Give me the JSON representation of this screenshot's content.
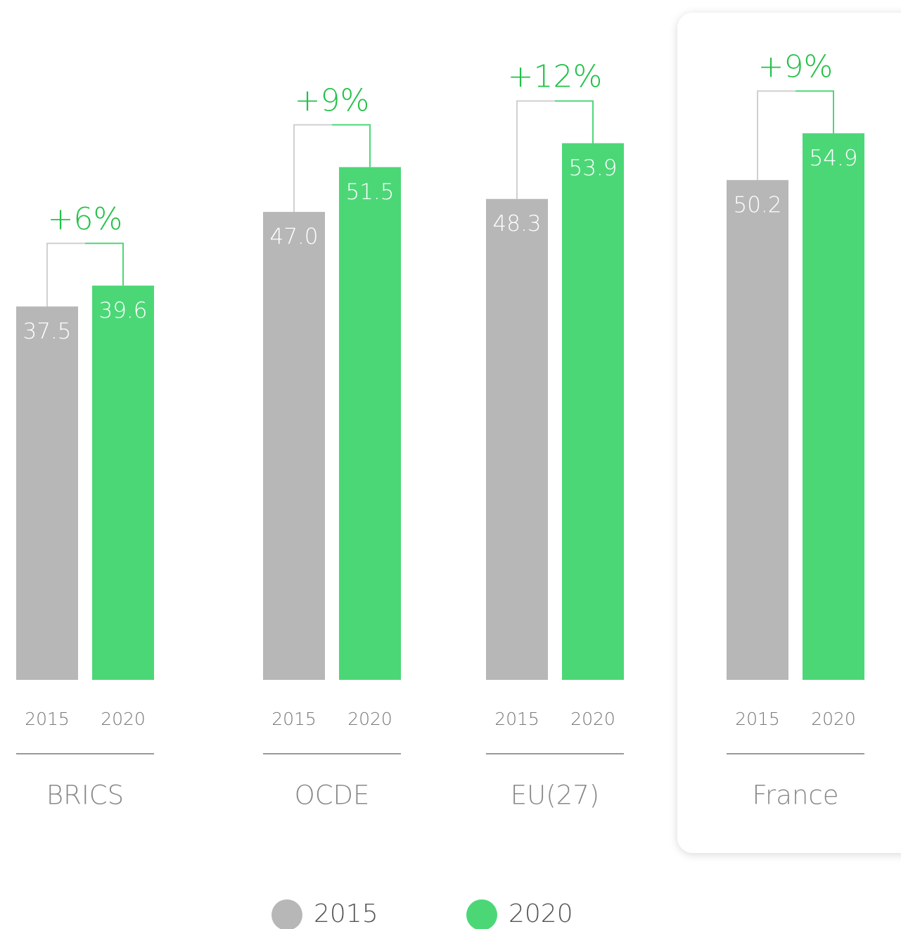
{
  "chart_data": {
    "type": "bar",
    "categories": [
      "BRICS",
      "OCDE",
      "EU(27)",
      "France"
    ],
    "series": [
      {
        "name": "2015",
        "color": "#b7b7b7",
        "values": [
          37.5,
          47.0,
          48.3,
          50.2
        ],
        "value_labels": [
          "37.5",
          "47.0",
          "48.3",
          "50.2"
        ]
      },
      {
        "name": "2020",
        "color": "#4cd777",
        "values": [
          39.6,
          51.5,
          53.9,
          54.9
        ],
        "value_labels": [
          "39.6",
          "51.5",
          "53.9",
          "54.9"
        ]
      }
    ],
    "annotations": [
      "+6%",
      "+9%",
      "+12%",
      "+9%"
    ],
    "ylim": [
      0,
      68
    ],
    "legend": "bottom"
  }
}
